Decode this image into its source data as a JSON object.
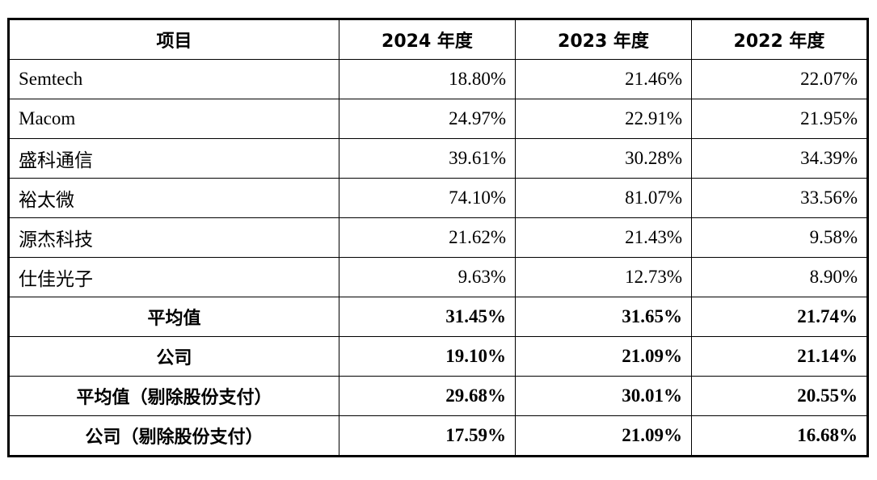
{
  "table": {
    "headers": [
      "项目",
      "2024 年度",
      "2023 年度",
      "2022 年度"
    ],
    "rows": [
      {
        "label": "Semtech",
        "values": [
          "18.80%",
          "21.46%",
          "22.07%"
        ],
        "bold": false
      },
      {
        "label": "Macom",
        "values": [
          "24.97%",
          "22.91%",
          "21.95%"
        ],
        "bold": false
      },
      {
        "label": "盛科通信",
        "values": [
          "39.61%",
          "30.28%",
          "34.39%"
        ],
        "bold": false
      },
      {
        "label": "裕太微",
        "values": [
          "74.10%",
          "81.07%",
          "33.56%"
        ],
        "bold": false
      },
      {
        "label": "源杰科技",
        "values": [
          "21.62%",
          "21.43%",
          "9.58%"
        ],
        "bold": false
      },
      {
        "label": "仕佳光子",
        "values": [
          "9.63%",
          "12.73%",
          "8.90%"
        ],
        "bold": false
      },
      {
        "label": "平均值",
        "values": [
          "31.45%",
          "31.65%",
          "21.74%"
        ],
        "bold": true
      },
      {
        "label": "公司",
        "values": [
          "19.10%",
          "21.09%",
          "21.14%"
        ],
        "bold": true
      },
      {
        "label": "平均值（剔除股份支付）",
        "values": [
          "29.68%",
          "30.01%",
          "20.55%"
        ],
        "bold": true
      },
      {
        "label": "公司（剔除股份支付）",
        "values": [
          "17.59%",
          "21.09%",
          "16.68%"
        ],
        "bold": true
      }
    ]
  }
}
